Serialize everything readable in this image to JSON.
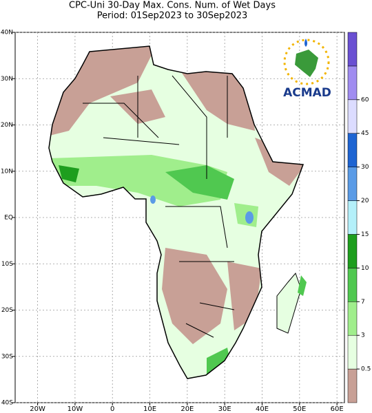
{
  "title": [
    "CPC-Uni 30-Day Max. Cons. Num. of Wet Days",
    "Period: 01Sep2023 to 30Sep2023"
  ],
  "map": {
    "xlim": [
      -26,
      62
    ],
    "ylim": [
      -40,
      40
    ],
    "xticks": [
      {
        "value": -20,
        "label": "20W"
      },
      {
        "value": -10,
        "label": "10W"
      },
      0,
      {
        "value": 10,
        "label": "10E"
      },
      {
        "value": 20,
        "label": "20E"
      },
      {
        "value": 30,
        "label": "30E"
      },
      {
        "value": 40,
        "label": "40E"
      },
      {
        "value": 50,
        "label": "50E"
      },
      {
        "value": 60,
        "label": "60E"
      }
    ],
    "yticks": [
      {
        "value": 40,
        "label": "40N"
      },
      {
        "value": 30,
        "label": "30N"
      },
      {
        "value": 20,
        "label": "20N"
      },
      {
        "value": 10,
        "label": "10N"
      },
      {
        "value": 0,
        "label": "EQ"
      },
      {
        "value": -10,
        "label": "10S"
      },
      {
        "value": -20,
        "label": "20S"
      },
      {
        "value": -30,
        "label": "30S"
      },
      {
        "value": -40,
        "label": "40S"
      }
    ]
  },
  "colorbar": {
    "levels": [
      0.5,
      3,
      7,
      10,
      15,
      20,
      30,
      45,
      60
    ],
    "colors": [
      "#c8a096",
      "#e6ffe1",
      "#a0ee8c",
      "#50c850",
      "#1e9e1e",
      "#b4f0fa",
      "#5a9be6",
      "#1e64d2",
      "#dcdcff",
      "#a08cf0",
      "#6a50d2"
    ]
  },
  "logo": "ACMAD"
}
